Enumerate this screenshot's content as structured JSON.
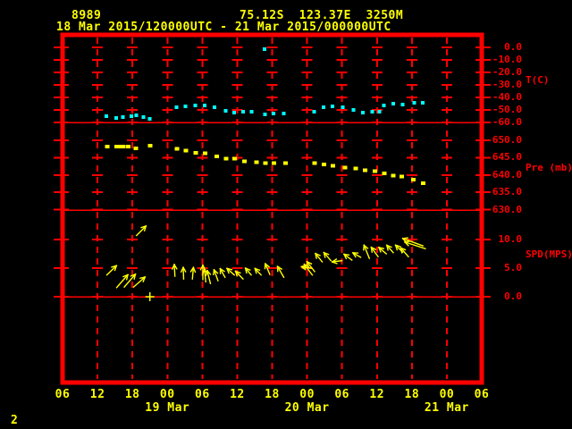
{
  "header": {
    "station_id": "8989",
    "location": "75.12S  123.37E  3250M",
    "period": "18 Mar 2015/120000UTC - 21 Mar 2015/000000UTC"
  },
  "footer": {
    "page_number": "2"
  },
  "colors": {
    "background": "#000000",
    "frame": "#ff0000",
    "grid": "#ff0000",
    "axis_label": "#ff0000",
    "time_label": "#ffff00",
    "header_text": "#ffff00",
    "temperature": "#00ffff",
    "pressure": "#ffff00",
    "wind": "#ffff00"
  },
  "chart_data": {
    "type": "scatter",
    "title": "AWS meteogram: temperature, pressure and wind speed time series",
    "x_axis": {
      "hours_span": 72,
      "tick_interval_hours": 6,
      "tick_labels": [
        "06",
        "12",
        "18",
        "00",
        "06",
        "12",
        "18",
        "00",
        "06",
        "12",
        "18",
        "00",
        "06"
      ],
      "date_labels": [
        {
          "label": "19 Mar",
          "tick_index": 3
        },
        {
          "label": "20 Mar",
          "tick_index": 7
        },
        {
          "label": "21 Mar",
          "tick_index": 11
        }
      ]
    },
    "panels": [
      {
        "name": "temperature",
        "unit_label": "T(C)",
        "color": "#00ffff",
        "yticks": [
          {
            "v": 0,
            "label": "0.0"
          },
          {
            "v": -10,
            "label": "-10.0"
          },
          {
            "v": -20,
            "label": "-20.0"
          },
          {
            "v": -30,
            "label": "-30.0"
          },
          {
            "v": -40,
            "label": "-40.0"
          },
          {
            "v": -50,
            "label": "-50.0"
          },
          {
            "v": -60,
            "label": "-60.0"
          }
        ],
        "points": [
          [
            7.5,
            -55.0
          ],
          [
            9.2,
            -56.4
          ],
          [
            10.4,
            -55.7
          ],
          [
            11.8,
            -55.0
          ],
          [
            12.7,
            -54.3
          ],
          [
            13.9,
            -55.7
          ],
          [
            15.0,
            -57.1
          ],
          [
            19.6,
            -47.9
          ],
          [
            21.1,
            -47.1
          ],
          [
            22.8,
            -46.4
          ],
          [
            24.4,
            -46.4
          ],
          [
            26.1,
            -47.9
          ],
          [
            28.0,
            -50.7
          ],
          [
            29.5,
            -52.1
          ],
          [
            31.0,
            -51.4
          ],
          [
            32.5,
            -51.4
          ],
          [
            34.7,
            -1.4
          ],
          [
            34.8,
            -53.6
          ],
          [
            36.2,
            -52.9
          ],
          [
            38.0,
            -52.9
          ],
          [
            43.2,
            -51.4
          ],
          [
            44.8,
            -47.9
          ],
          [
            46.4,
            -47.1
          ],
          [
            48.1,
            -47.9
          ],
          [
            50.0,
            -50.0
          ],
          [
            51.6,
            -52.1
          ],
          [
            53.2,
            -51.4
          ],
          [
            54.4,
            -51.4
          ],
          [
            55.2,
            -46.4
          ],
          [
            56.8,
            -45.0
          ],
          [
            58.4,
            -45.7
          ],
          [
            60.4,
            -44.3
          ],
          [
            61.9,
            -44.3
          ]
        ]
      },
      {
        "name": "pressure",
        "unit_label": "Pre (mb)",
        "color": "#ffff00",
        "yticks": [
          {
            "v": 650,
            "label": "650.0"
          },
          {
            "v": 645,
            "label": "645.0"
          },
          {
            "v": 640,
            "label": "640.0"
          },
          {
            "v": 635,
            "label": "635.0"
          },
          {
            "v": 630,
            "label": "630.0"
          }
        ],
        "points": [
          [
            7.6,
            648.2
          ],
          [
            9.2,
            648.2
          ],
          [
            9.9,
            648.2
          ],
          [
            10.4,
            648.2
          ],
          [
            11.2,
            648.2
          ],
          [
            12.5,
            647.7
          ],
          [
            15.0,
            648.5
          ],
          [
            19.6,
            647.5
          ],
          [
            21.1,
            647.0
          ],
          [
            22.8,
            646.4
          ],
          [
            24.4,
            646.2
          ],
          [
            26.4,
            645.4
          ],
          [
            28.0,
            644.7
          ],
          [
            29.5,
            644.7
          ],
          [
            31.2,
            643.9
          ],
          [
            33.2,
            643.7
          ],
          [
            34.8,
            643.4
          ],
          [
            36.2,
            643.4
          ],
          [
            38.2,
            643.4
          ],
          [
            43.2,
            643.4
          ],
          [
            44.8,
            643.1
          ],
          [
            46.4,
            642.6
          ],
          [
            48.4,
            642.1
          ],
          [
            50.3,
            641.9
          ],
          [
            51.9,
            641.4
          ],
          [
            53.6,
            641.1
          ],
          [
            55.2,
            640.4
          ],
          [
            56.7,
            639.8
          ],
          [
            58.2,
            639.6
          ],
          [
            60.2,
            638.6
          ],
          [
            61.9,
            637.6
          ]
        ]
      },
      {
        "name": "wind_speed",
        "unit_label": "SPD(MPS)",
        "color": "#ffff00",
        "yticks": [
          {
            "v": 10,
            "label": "10.0"
          },
          {
            "v": 5,
            "label": "5.0"
          },
          {
            "v": 0,
            "label": "0.0"
          }
        ],
        "dir_convention": "degrees, 0 = toward right/east, 90 = up/north; arrow drawn from (t,spd) toward dir",
        "vectors": [
          {
            "t": 7.6,
            "spd": 3.8,
            "dir": 44,
            "len": 15
          },
          {
            "t": 9.3,
            "spd": 1.6,
            "dir": 49,
            "len": 19
          },
          {
            "t": 10.6,
            "spd": 1.7,
            "dir": 49,
            "len": 19
          },
          {
            "t": 12.2,
            "spd": 1.7,
            "dir": 41,
            "len": 17
          },
          {
            "t": 12.7,
            "spd": 10.7,
            "dir": 45,
            "len": 15
          },
          {
            "t": 19.3,
            "spd": 3.6,
            "dir": 93,
            "len": 13
          },
          {
            "t": 20.8,
            "spd": 3.1,
            "dir": 92,
            "len": 13
          },
          {
            "t": 22.3,
            "spd": 3.1,
            "dir": 85,
            "len": 13
          },
          {
            "t": 24.1,
            "spd": 3.0,
            "dir": 90,
            "len": 16
          },
          {
            "t": 24.6,
            "spd": 2.6,
            "dir": 96,
            "len": 14
          },
          {
            "t": 25.4,
            "spd": 2.3,
            "dir": 104,
            "len": 15
          },
          {
            "t": 26.7,
            "spd": 2.8,
            "dir": 110,
            "len": 13
          },
          {
            "t": 27.9,
            "spd": 3.4,
            "dir": 119,
            "len": 11
          },
          {
            "t": 29.5,
            "spd": 3.8,
            "dir": 138,
            "len": 11
          },
          {
            "t": 31.0,
            "spd": 3.1,
            "dir": 134,
            "len": 12
          },
          {
            "t": 32.4,
            "spd": 3.8,
            "dir": 130,
            "len": 10
          },
          {
            "t": 34.1,
            "spd": 3.8,
            "dir": 133,
            "len": 10
          },
          {
            "t": 35.6,
            "spd": 3.9,
            "dir": 113,
            "len": 13
          },
          {
            "t": 38.0,
            "spd": 3.4,
            "dir": 120,
            "len": 14
          },
          {
            "t": 42.7,
            "spd": 5.0,
            "dir": 172,
            "len": 11
          },
          {
            "t": 42.9,
            "spd": 3.8,
            "dir": 127,
            "len": 15
          },
          {
            "t": 43.3,
            "spd": 4.4,
            "dir": 128,
            "len": 14
          },
          {
            "t": 44.6,
            "spd": 6.1,
            "dir": 129,
            "len": 12
          },
          {
            "t": 46.1,
            "spd": 6.3,
            "dir": 131,
            "len": 12
          },
          {
            "t": 48.0,
            "spd": 6.3,
            "dir": 187,
            "len": 11
          },
          {
            "t": 49.7,
            "spd": 6.4,
            "dir": 143,
            "len": 11
          },
          {
            "t": 51.2,
            "spd": 6.9,
            "dir": 150,
            "len": 10
          },
          {
            "t": 52.7,
            "spd": 6.7,
            "dir": 112,
            "len": 16
          },
          {
            "t": 54.2,
            "spd": 7.0,
            "dir": 126,
            "len": 13
          },
          {
            "t": 55.6,
            "spd": 7.5,
            "dir": 139,
            "len": 11
          },
          {
            "t": 56.8,
            "spd": 7.7,
            "dir": 131,
            "len": 11
          },
          {
            "t": 58.4,
            "spd": 7.8,
            "dir": 135,
            "len": 11
          },
          {
            "t": 59.4,
            "spd": 7.0,
            "dir": 131,
            "len": 13
          },
          {
            "t": 61.9,
            "spd": 8.9,
            "dir": 160,
            "len": 24
          },
          {
            "t": 62.3,
            "spd": 8.4,
            "dir": 162,
            "len": 24
          }
        ],
        "calm_markers": [
          {
            "t": 15.0,
            "spd": 0
          }
        ]
      },
      {
        "name": "empty_panel",
        "unit_label": "",
        "yticks": []
      }
    ]
  }
}
